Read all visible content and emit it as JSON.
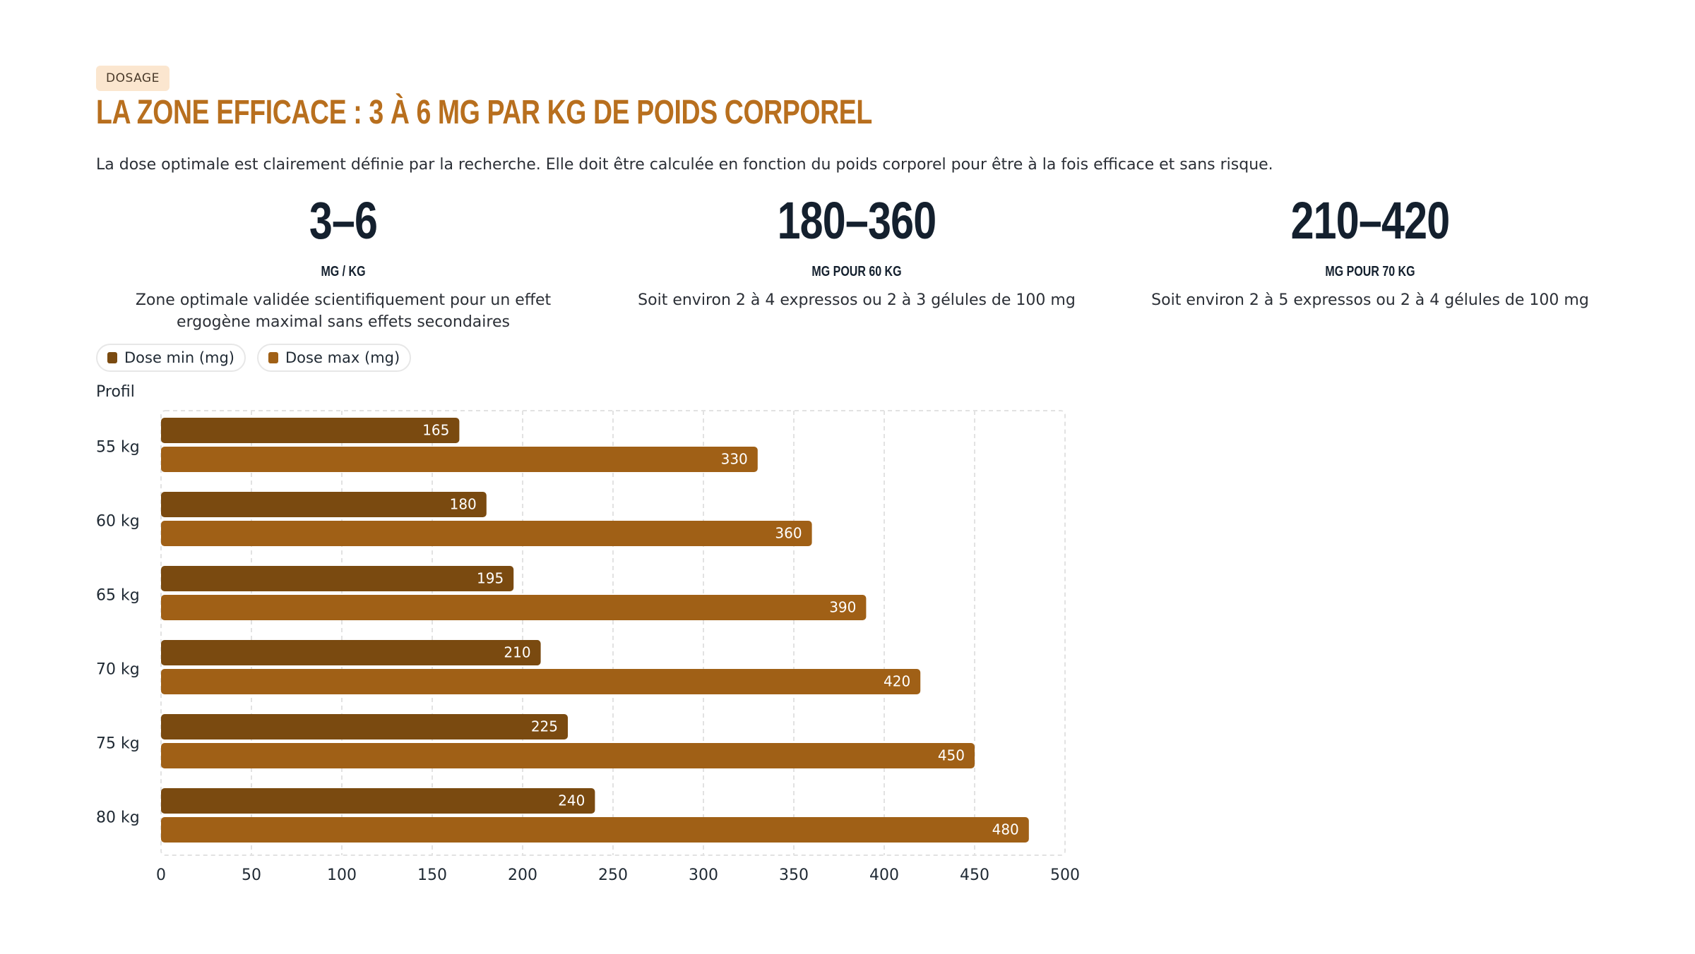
{
  "header": {
    "badge": "DOSAGE",
    "title": "LA ZONE EFFICACE : 3 À 6 MG PAR KG DE POIDS CORPOREL",
    "intro": "La dose optimale est clairement définie par la recherche. Elle doit être calculée en fonction du poids corporel pour être à la fois efficace et sans risque."
  },
  "stats": [
    {
      "value": "3–6",
      "unit": "MG / KG",
      "desc": "Zone optimale validée scientifiquement pour un effet ergogène maximal sans effets secondaires"
    },
    {
      "value": "180–360",
      "unit": "MG POUR 60 KG",
      "desc": "Soit environ 2 à 4 expressos ou 2 à 3 gélules de 100 mg"
    },
    {
      "value": "210–420",
      "unit": "MG POUR 70 KG",
      "desc": "Soit environ 2 à 5 expressos ou 2 à 4 gélules de 100 mg"
    }
  ],
  "chart_data": {
    "type": "bar",
    "orientation": "horizontal",
    "ylabel": "Profil",
    "categories": [
      "55 kg",
      "60 kg",
      "65 kg",
      "70 kg",
      "75 kg",
      "80 kg"
    ],
    "series": [
      {
        "name": "Dose min (mg)",
        "color": "#7a4a10",
        "values": [
          165,
          180,
          195,
          210,
          225,
          240
        ]
      },
      {
        "name": "Dose max (mg)",
        "color": "#a06016",
        "values": [
          330,
          360,
          390,
          420,
          450,
          480
        ]
      }
    ],
    "xlim": [
      0,
      500
    ],
    "xticks": [
      0,
      50,
      100,
      150,
      200,
      250,
      300,
      350,
      400,
      450,
      500
    ],
    "grid": true,
    "data_labels": true,
    "legend_position": "top-left"
  }
}
